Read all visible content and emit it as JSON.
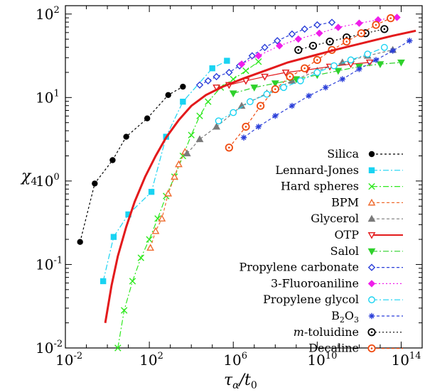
{
  "chart_data": {
    "type": "scatter",
    "title": "",
    "xlabel": {
      "main": "τ",
      "sub1": "α",
      "slash": "/t",
      "sub2": "0"
    },
    "ylabel": {
      "main": "χ",
      "sub": "4"
    },
    "xscale": "log",
    "yscale": "log",
    "xlim": [
      -2,
      15
    ],
    "ylim": [
      -2,
      2.1
    ],
    "x_tick_labels": [
      "10",
      "10",
      "10",
      "10",
      "10"
    ],
    "x_tick_exponents": [
      "-2",
      "2",
      "6",
      "10",
      "14"
    ],
    "x_tick_values_log10": [
      -2,
      2,
      6,
      10,
      14
    ],
    "y_tick_labels": [
      "10",
      "10",
      "10",
      "10",
      "10"
    ],
    "y_tick_exponents": [
      "-2",
      "-1",
      "0",
      "1",
      "2"
    ],
    "y_tick_values_log10": [
      -2,
      -1,
      0,
      1,
      2
    ],
    "grid": false,
    "legend_position": "right-lower",
    "series": [
      {
        "name": "Silica",
        "color": "#000000",
        "marker": "circle-filled",
        "dash": "3,3",
        "x": [
          -1.3,
          -0.6,
          0.25,
          0.9,
          1.9,
          2.9,
          3.6
        ],
        "y": [
          -0.73,
          -0.03,
          0.25,
          0.53,
          0.75,
          1.03,
          1.13
        ]
      },
      {
        "name": "Lennard-Jones",
        "color": "#19d3f2",
        "marker": "square-filled",
        "dash": "8,3,2,3",
        "x": [
          -0.2,
          0.3,
          1.0,
          2.1,
          2.8,
          3.6,
          5.0,
          5.7
        ],
        "y": [
          -1.2,
          -0.67,
          -0.4,
          -0.13,
          0.53,
          0.95,
          1.35,
          1.44
        ]
      },
      {
        "name": "Hard spheres",
        "color": "#2ee81e",
        "marker": "cross",
        "dash": "8,3,2,3",
        "x": [
          0.5,
          0.8,
          1.2,
          1.6,
          2.0,
          2.4,
          2.8,
          3.2,
          3.6,
          4.0,
          4.4,
          4.8,
          5.4,
          6.0,
          6.6,
          7.2
        ],
        "y": [
          -2.0,
          -1.55,
          -1.2,
          -0.92,
          -0.7,
          -0.45,
          -0.18,
          0.05,
          0.3,
          0.55,
          0.78,
          0.95,
          1.12,
          1.22,
          1.32,
          1.43
        ]
      },
      {
        "name": "BPM",
        "color": "#ef6b2f",
        "marker": "triangle-up-open",
        "dash": "4,3",
        "x": [
          2.05,
          2.3,
          2.6,
          2.9,
          3.2,
          3.4,
          3.7
        ],
        "y": [
          -0.8,
          -0.6,
          -0.45,
          -0.15,
          0.05,
          0.2,
          0.35
        ]
      },
      {
        "name": "Glycerol",
        "color": "#7a7a7a",
        "marker": "triangle-up-filled",
        "dash": "4,3",
        "x": [
          3.8,
          4.4,
          5.2,
          6.4,
          7.6,
          8.8,
          10.0,
          11.2,
          12.4,
          13.6
        ],
        "y": [
          0.33,
          0.5,
          0.65,
          0.9,
          1.05,
          1.2,
          1.32,
          1.42,
          1.5,
          1.57
        ]
      },
      {
        "name": "OTP",
        "color": "#e31a1c",
        "marker": "triangle-down-open",
        "dash": "",
        "x": [
          5.2,
          5.8,
          6.6,
          7.5,
          8.5,
          9.5,
          10.6,
          11.6,
          12.5
        ],
        "y": [
          1.12,
          1.15,
          1.2,
          1.25,
          1.3,
          1.33,
          1.37,
          1.4,
          1.42
        ]
      },
      {
        "name": "Salol",
        "color": "#2ed12b",
        "marker": "triangle-down-filled",
        "dash": "8,3,2,3",
        "x": [
          6.0,
          7.0,
          8.0,
          9.0,
          10.0,
          11.0,
          12.0,
          13.0,
          14.0
        ],
        "y": [
          1.05,
          1.12,
          1.17,
          1.22,
          1.27,
          1.32,
          1.37,
          1.4,
          1.42
        ]
      },
      {
        "name": "Propylene carbonate",
        "color": "#2b3fd9",
        "marker": "diamond-open",
        "dash": "4,3",
        "x": [
          4.4,
          4.8,
          5.2,
          5.8,
          6.3,
          6.9,
          7.5,
          8.1,
          8.8,
          9.4,
          10.0,
          10.7
        ],
        "y": [
          1.15,
          1.2,
          1.25,
          1.3,
          1.38,
          1.5,
          1.6,
          1.68,
          1.76,
          1.82,
          1.87,
          1.9
        ]
      },
      {
        "name": "3-Fluoroaniline",
        "color": "#ef1fea",
        "marker": "diamond-filled",
        "dash": "2,3",
        "x": [
          6.4,
          7.2,
          8.2,
          9.1,
          10.1,
          11.0,
          12.0,
          12.9,
          13.8
        ],
        "y": [
          1.4,
          1.5,
          1.62,
          1.7,
          1.77,
          1.84,
          1.89,
          1.93,
          1.96
        ]
      },
      {
        "name": "Propylene glycol",
        "color": "#19d3f2",
        "marker": "circle-open",
        "dash": "8,3,2,3",
        "x": [
          5.3,
          6.0,
          6.8,
          7.6,
          8.4,
          9.2,
          10.0,
          10.8,
          11.6,
          12.4,
          13.2
        ],
        "y": [
          0.72,
          0.82,
          0.95,
          1.04,
          1.12,
          1.2,
          1.3,
          1.38,
          1.45,
          1.52,
          1.6
        ]
      },
      {
        "name": "B₂O₃",
        "color": "#2b3fd9",
        "marker": "star",
        "dash": "4,3",
        "x": [
          6.5,
          7.2,
          8.0,
          8.8,
          9.6,
          10.4,
          11.2,
          12.0,
          12.8,
          13.6,
          14.4
        ],
        "y": [
          0.52,
          0.65,
          0.78,
          0.9,
          1.02,
          1.12,
          1.22,
          1.34,
          1.45,
          1.56,
          1.68
        ]
      },
      {
        "name": "m-toluidine",
        "color": "#000000",
        "marker": "circle-open-dot",
        "dash": "2,3",
        "x": [
          9.1,
          9.8,
          10.6,
          11.4,
          12.3,
          13.2
        ],
        "y": [
          1.57,
          1.62,
          1.67,
          1.72,
          1.77,
          1.82
        ]
      },
      {
        "name": "Decaline",
        "color": "#ef4a0f",
        "marker": "circle-open-dot",
        "dash": "4,3",
        "x": [
          5.8,
          6.6,
          7.3,
          8.0,
          8.7,
          9.4,
          10.0,
          10.7,
          11.4,
          12.1,
          12.8,
          13.5
        ],
        "y": [
          0.4,
          0.65,
          0.9,
          1.1,
          1.25,
          1.35,
          1.45,
          1.57,
          1.67,
          1.77,
          1.87,
          1.95
        ]
      }
    ],
    "curve": {
      "color": "#e31a1c",
      "x": [
        -0.1,
        0.2,
        0.5,
        0.9,
        1.3,
        1.8,
        2.3,
        2.8,
        3.4,
        4.0,
        4.7,
        5.5,
        6.5,
        7.5,
        8.6,
        9.8,
        11.0,
        12.3,
        13.6,
        14.7
      ],
      "y": [
        -1.7,
        -1.25,
        -0.9,
        -0.55,
        -0.25,
        0.05,
        0.3,
        0.52,
        0.73,
        0.9,
        1.03,
        1.13,
        1.23,
        1.32,
        1.42,
        1.5,
        1.58,
        1.66,
        1.74,
        1.8
      ]
    },
    "legend_labels": {
      "Silica": "Silica",
      "Lennard-Jones": "Lennard-Jones",
      "Hard spheres": "Hard spheres",
      "BPM": "BPM",
      "Glycerol": "Glycerol",
      "OTP": "OTP",
      "Salol": "Salol",
      "Propylene carbonate": "Propylene carbonate",
      "3-Fluoroaniline": "3-Fluoroaniline",
      "Propylene glycol": "Propylene glycol",
      "B2O3": "B",
      "B2O3_sub": "2",
      "B2O3_tail": "O",
      "B2O3_sub2": "3",
      "m-toluidine_italic": "m",
      "m-toluidine_rest": "-toluidine",
      "Decaline": "Decaline"
    }
  }
}
